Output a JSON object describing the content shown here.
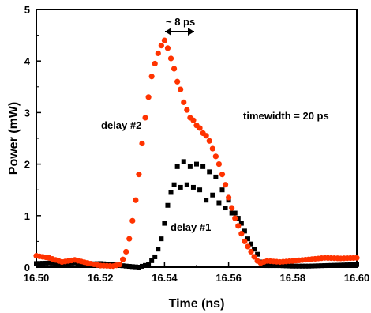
{
  "chart_data": {
    "type": "scatter",
    "xlabel": "Time (ns)",
    "ylabel": "Power (mW)",
    "xlim": [
      16.5,
      16.6
    ],
    "ylim": [
      0,
      5
    ],
    "x_ticks": [
      "16.50",
      "16.52",
      "16.54",
      "16.56",
      "16.58",
      "16.60"
    ],
    "y_ticks": [
      "0",
      "1",
      "2",
      "3",
      "4",
      "5"
    ],
    "grid": false,
    "legend": "none",
    "series": [
      {
        "name": "delay #1",
        "marker": "square",
        "color": "#000000",
        "x": [
          16.5,
          16.504,
          16.508,
          16.512,
          16.516,
          16.52,
          16.524,
          16.528,
          16.532,
          16.535,
          16.537,
          16.538,
          16.539,
          16.54,
          16.541,
          16.542,
          16.543,
          16.544,
          16.545,
          16.546,
          16.547,
          16.548,
          16.549,
          16.55,
          16.551,
          16.552,
          16.553,
          16.554,
          16.555,
          16.556,
          16.557,
          16.558,
          16.559,
          16.56,
          16.561,
          16.562,
          16.563,
          16.564,
          16.565,
          16.566,
          16.567,
          16.568,
          16.569,
          16.57,
          16.572,
          16.576,
          16.58,
          16.585,
          16.59,
          16.595,
          16.6
        ],
        "y": [
          0.07,
          0.08,
          0.07,
          0.08,
          0.06,
          0.07,
          0.05,
          0.02,
          0.0,
          0.05,
          0.2,
          0.35,
          0.55,
          0.85,
          1.2,
          1.45,
          1.6,
          1.95,
          1.55,
          2.05,
          1.6,
          1.95,
          1.55,
          2.0,
          1.5,
          1.95,
          1.3,
          1.85,
          1.4,
          1.75,
          1.25,
          1.5,
          1.15,
          1.3,
          1.05,
          1.05,
          0.95,
          0.85,
          0.7,
          0.55,
          0.45,
          0.35,
          0.25,
          0.1,
          0.03,
          0.03,
          0.02,
          0.02,
          0.03,
          0.04,
          0.05
        ]
      },
      {
        "name": "delay #2",
        "marker": "circle",
        "color": "#ff3300",
        "x": [
          16.5,
          16.504,
          16.508,
          16.512,
          16.516,
          16.52,
          16.524,
          16.526,
          16.527,
          16.528,
          16.529,
          16.53,
          16.531,
          16.532,
          16.533,
          16.534,
          16.535,
          16.536,
          16.537,
          16.538,
          16.539,
          16.54,
          16.541,
          16.542,
          16.543,
          16.544,
          16.545,
          16.546,
          16.547,
          16.548,
          16.549,
          16.55,
          16.551,
          16.552,
          16.553,
          16.554,
          16.555,
          16.556,
          16.557,
          16.558,
          16.559,
          16.56,
          16.561,
          16.562,
          16.563,
          16.564,
          16.565,
          16.566,
          16.567,
          16.568,
          16.569,
          16.57,
          16.572,
          16.576,
          16.58,
          16.585,
          16.59,
          16.595,
          16.6
        ],
        "y": [
          0.22,
          0.18,
          0.1,
          0.14,
          0.08,
          0.03,
          0.02,
          0.05,
          0.15,
          0.3,
          0.55,
          0.9,
          1.3,
          1.8,
          2.4,
          2.9,
          3.3,
          3.7,
          3.95,
          4.15,
          4.3,
          4.4,
          4.25,
          4.05,
          3.85,
          3.6,
          3.45,
          3.2,
          3.05,
          2.9,
          2.85,
          2.75,
          2.7,
          2.6,
          2.55,
          2.45,
          2.3,
          2.15,
          2.0,
          1.8,
          1.6,
          1.35,
          1.15,
          0.95,
          0.8,
          0.65,
          0.5,
          0.4,
          0.3,
          0.2,
          0.12,
          0.08,
          0.12,
          0.1,
          0.12,
          0.15,
          0.18,
          0.17,
          0.18
        ]
      }
    ],
    "annotations": {
      "width_marker": "~ 8 ps",
      "timewidth": "timewidth = 20 ps",
      "series1_label": "delay #1",
      "series2_label": "delay #2"
    }
  }
}
